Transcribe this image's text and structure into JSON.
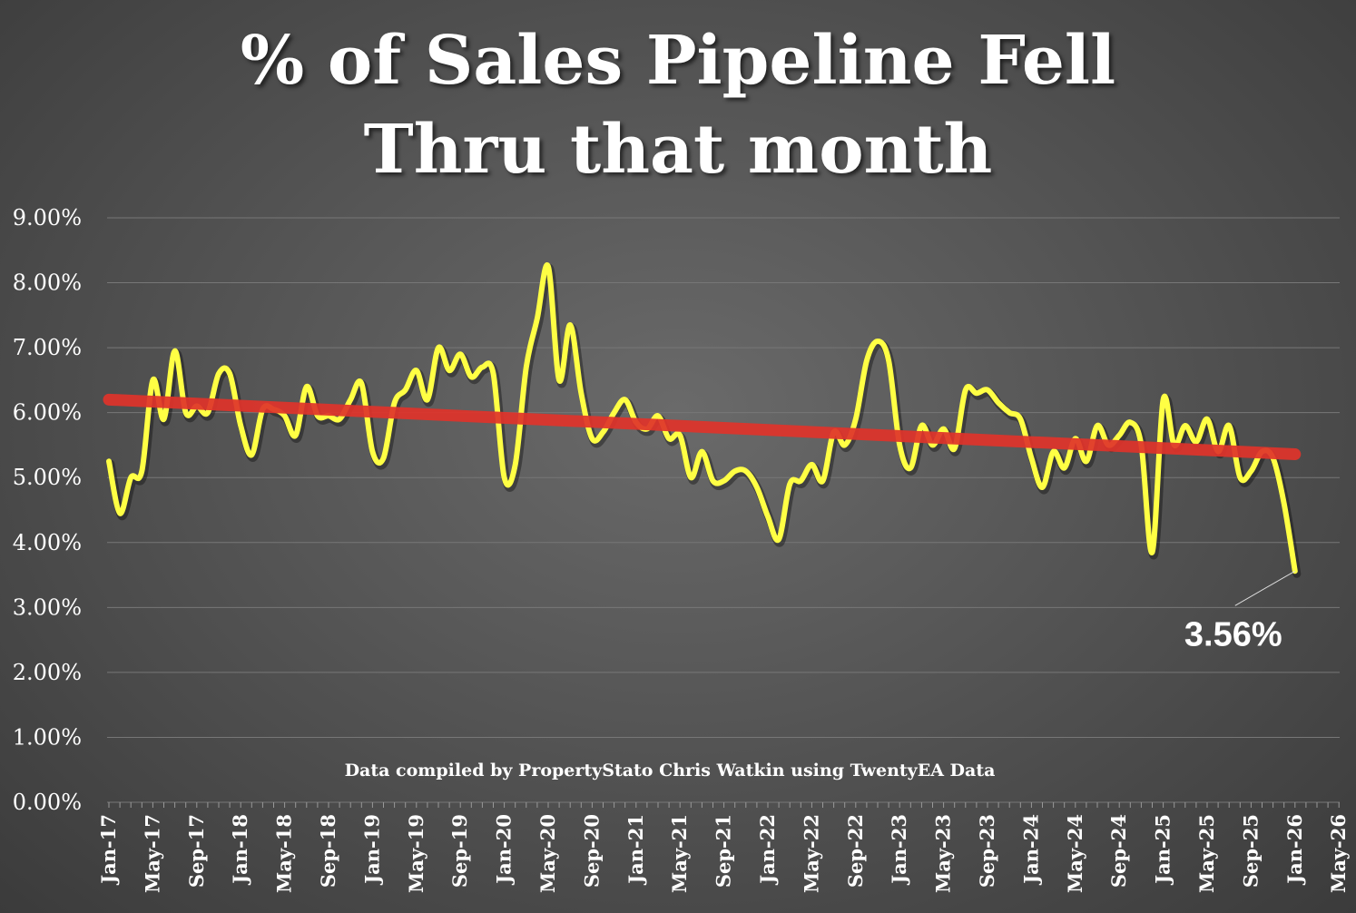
{
  "title": {
    "line1": "% of Sales Pipeline Fell",
    "line2": "Thru that month"
  },
  "source_note": "Data compiled by PropertyStato Chris Watkin using TwentyEA Data",
  "colors": {
    "background": "#555555",
    "series_line": "#ffff44",
    "trend_line": "#e0332a",
    "gridline": "#777777",
    "text": "#ffffff"
  },
  "chart_data": {
    "type": "line",
    "title": "% of Sales Pipeline Fell Thru that month",
    "xlabel": "",
    "ylabel": "",
    "ylim": [
      0,
      9
    ],
    "y_ticks": [
      "0.00%",
      "1.00%",
      "2.00%",
      "3.00%",
      "4.00%",
      "5.00%",
      "6.00%",
      "7.00%",
      "8.00%",
      "9.00%"
    ],
    "x_ticks": [
      "Jan-17",
      "May-17",
      "Sep-17",
      "Jan-18",
      "May-18",
      "Sep-18",
      "Jan-19",
      "May-19",
      "Sep-19",
      "Jan-20",
      "May-20",
      "Sep-20",
      "Jan-21",
      "May-21",
      "Sep-21",
      "Jan-22",
      "May-22",
      "Sep-22",
      "Jan-23",
      "May-23",
      "Sep-23",
      "Jan-24",
      "May-24",
      "Sep-24",
      "Jan-25",
      "May-25",
      "Sep-25",
      "Jan-26",
      "May-26"
    ],
    "x_start": "Jan-17",
    "grid": true,
    "legend": "none",
    "series": [
      {
        "values": [
          5.25,
          4.45,
          5.0,
          5.1,
          6.5,
          5.9,
          6.95,
          6.0,
          6.1,
          6.0,
          6.6,
          6.6,
          5.8,
          5.35,
          6.05,
          6.05,
          5.95,
          5.65,
          6.4,
          5.95,
          5.95,
          5.9,
          6.2,
          6.45,
          5.4,
          5.3,
          6.15,
          6.35,
          6.65,
          6.2,
          7.0,
          6.65,
          6.9,
          6.55,
          6.7,
          6.6,
          5.0,
          5.2,
          6.7,
          7.45,
          8.25,
          6.5,
          7.35,
          6.3,
          5.6,
          5.7,
          6.0,
          6.2,
          5.85,
          5.75,
          5.95,
          5.6,
          5.65,
          5.0,
          5.4,
          4.95,
          4.95,
          5.1,
          5.1,
          4.85,
          4.4,
          4.05,
          4.9,
          4.95,
          5.2,
          4.95,
          5.7,
          5.5,
          5.9,
          6.8,
          7.1,
          6.8,
          5.5,
          5.15,
          5.8,
          5.5,
          5.75,
          5.45,
          6.35,
          6.3,
          6.35,
          6.15,
          6.0,
          5.9,
          5.3,
          4.85,
          5.4,
          5.15,
          5.6,
          5.25,
          5.8,
          5.5,
          5.65,
          5.85,
          5.5,
          3.85,
          6.2,
          5.5,
          5.8,
          5.55,
          5.9,
          5.4,
          5.8,
          5.0,
          5.1,
          5.4,
          5.3,
          4.6,
          3.56
        ]
      }
    ],
    "trendline": {
      "start": 6.2,
      "end": 5.36
    },
    "annotation": {
      "text": "3.56%",
      "value": 3.56,
      "x": "Dec-25"
    }
  }
}
